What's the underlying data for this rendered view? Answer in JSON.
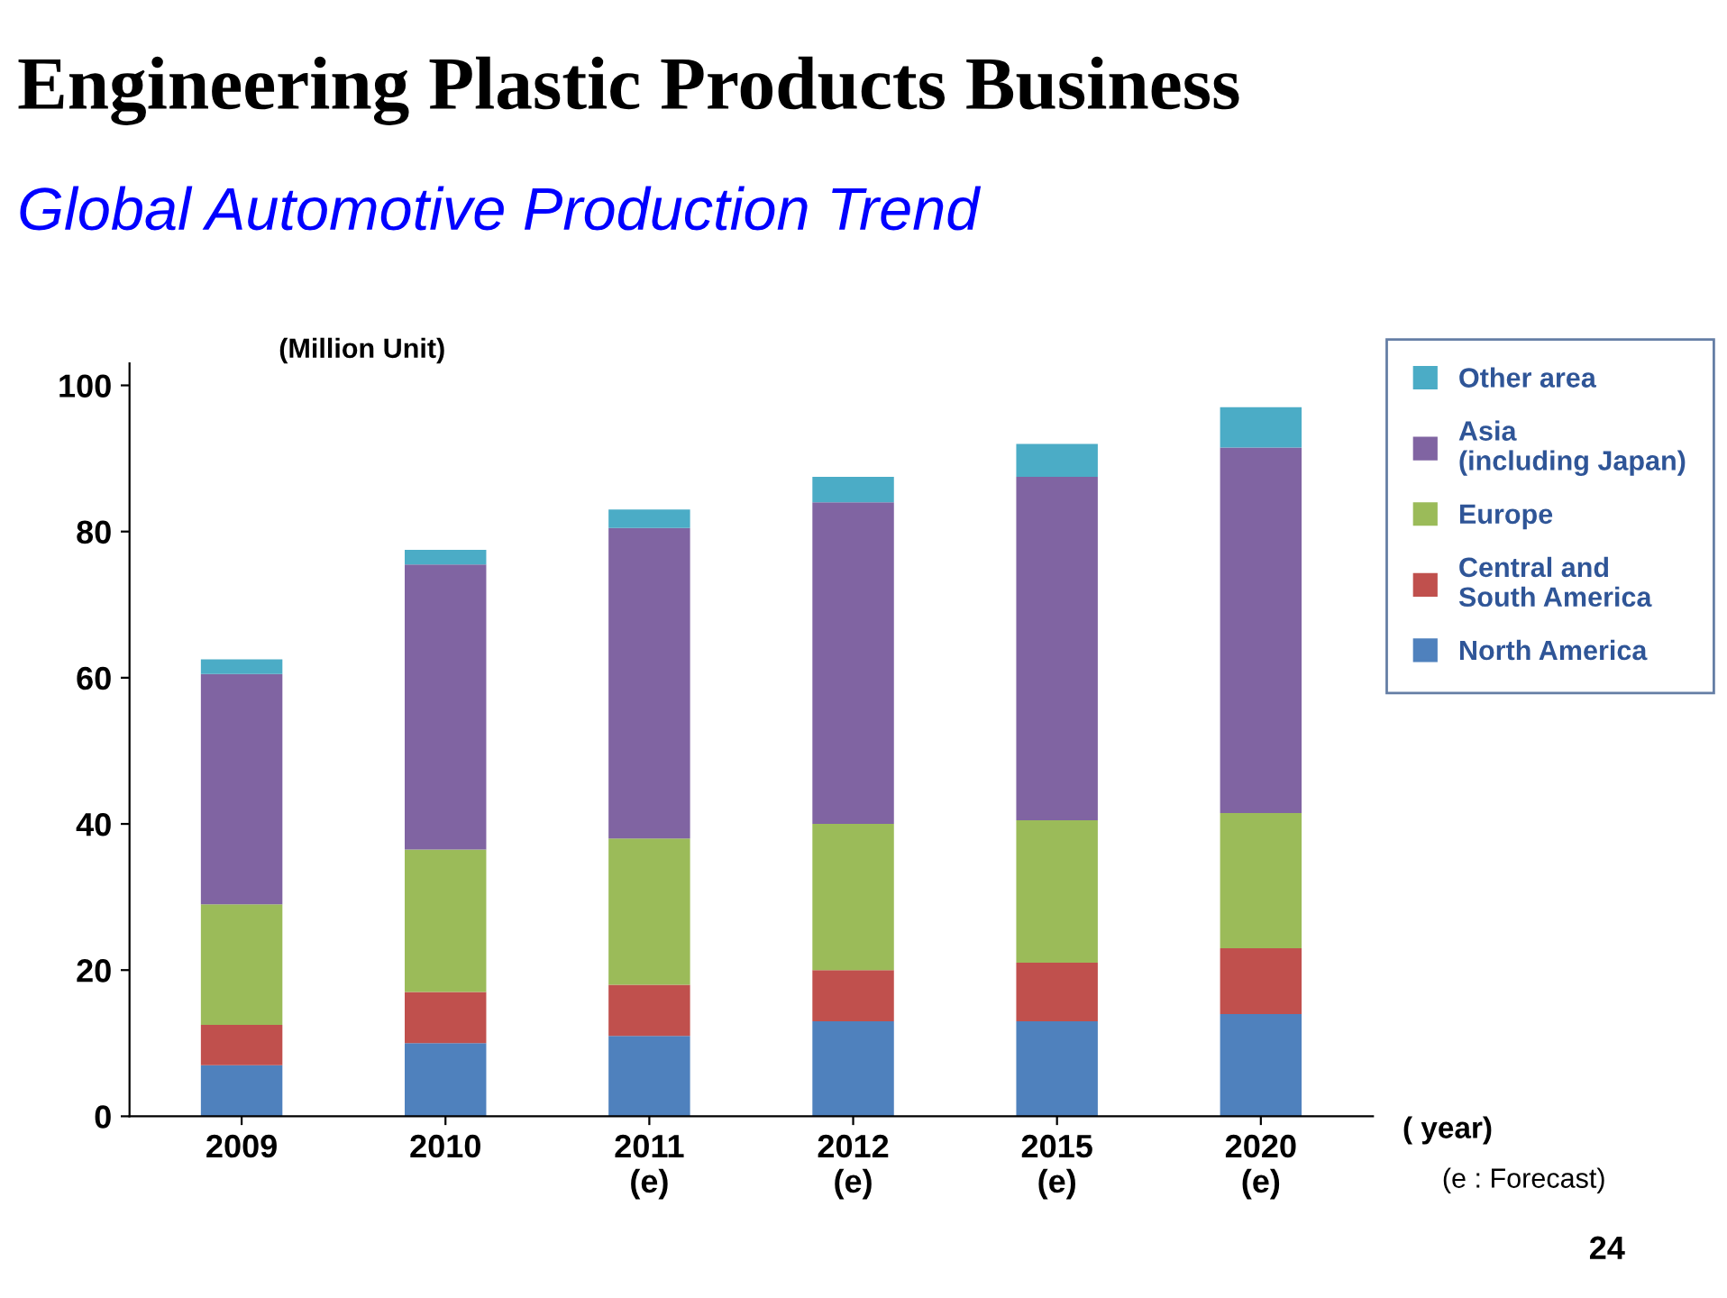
{
  "chart_data": {
    "type": "bar",
    "stacked": true,
    "title": "Engineering Plastic Products Business",
    "subtitle": "Global Automotive Production Trend",
    "ylabel": "(Million Unit)",
    "xlabel": "( year)",
    "categories": [
      "2009",
      "2010",
      "2011\n(e)",
      "2012\n(e)",
      "2015\n(e)",
      "2020\n(e)"
    ],
    "series": [
      {
        "name": "North America",
        "color": "#4f81bd",
        "values": [
          7,
          10,
          11,
          13,
          13,
          14
        ]
      },
      {
        "name": "Central and\nSouth America",
        "color": "#c0504d",
        "values": [
          5.5,
          7,
          7,
          7,
          8,
          9
        ]
      },
      {
        "name": "Europe",
        "color": "#9bbb59",
        "values": [
          16.5,
          19.5,
          20,
          20,
          19.5,
          18.5
        ]
      },
      {
        "name": "Asia\n(including Japan)",
        "color": "#8064a2",
        "values": [
          31.5,
          39,
          42.5,
          44,
          47,
          50
        ]
      },
      {
        "name": "Other area",
        "color": "#4bacc6",
        "values": [
          2,
          2,
          2.5,
          3.5,
          4.5,
          5.5
        ]
      }
    ],
    "ylim": [
      0,
      103
    ],
    "yticks": [
      0,
      20,
      40,
      60,
      80,
      100
    ],
    "grid": false,
    "legend": "top right",
    "annotations": [
      "(e : Forecast)",
      "24"
    ]
  }
}
